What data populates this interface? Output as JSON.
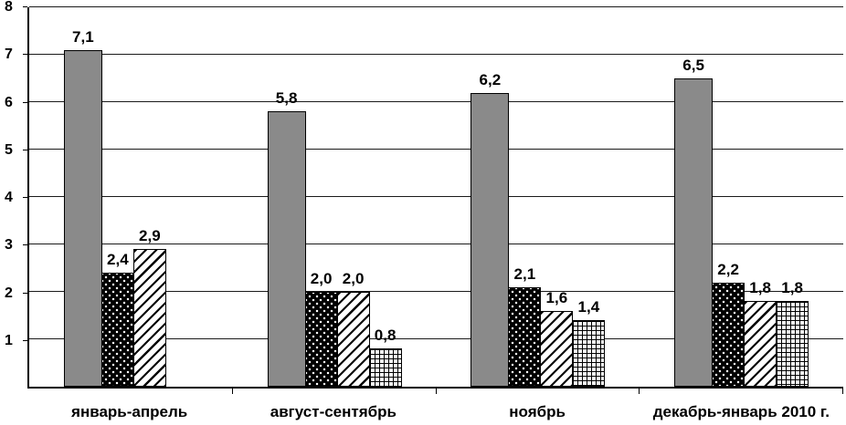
{
  "chart_data": {
    "type": "bar",
    "title": "",
    "xlabel": "",
    "ylabel": "",
    "categories": [
      "январь-апрель",
      "август-сентябрь",
      "ноябрь",
      "декабрь-январь 2010 г."
    ],
    "series": [
      {
        "name": "solid-gray",
        "pattern": "solid",
        "color": "#8a8a8a",
        "values": [
          7.1,
          5.8,
          6.2,
          6.5
        ]
      },
      {
        "name": "black-speckled",
        "pattern": "white-dots-on-black",
        "values": [
          2.4,
          2.0,
          2.1,
          2.2
        ]
      },
      {
        "name": "diagonal-hatch",
        "pattern": "diagonal-stripes",
        "values": [
          2.9,
          2.0,
          1.6,
          1.8
        ]
      },
      {
        "name": "cross-hatch",
        "pattern": "small-grid",
        "values": [
          null,
          0.8,
          1.4,
          1.8
        ]
      }
    ],
    "value_labels": [
      [
        "7,1",
        "2,4",
        "2,9",
        null
      ],
      [
        "5,8",
        "2,0",
        "2,0",
        "0,8"
      ],
      [
        "6,2",
        "2,1",
        "1,6",
        "1,4"
      ],
      [
        "6,5",
        "2,2",
        "1,8",
        "1,8"
      ]
    ],
    "ylim": [
      0,
      8
    ],
    "yticks": [
      1,
      2,
      3,
      4,
      5,
      6,
      7,
      8
    ],
    "grid": true,
    "legend": false,
    "decimal_separator": ","
  },
  "colors": {
    "background": "#ffffff",
    "axis": "#000000",
    "gridline": "#1a1a1a",
    "bar_gray": "#8a8a8a",
    "bar_black": "#000000"
  }
}
